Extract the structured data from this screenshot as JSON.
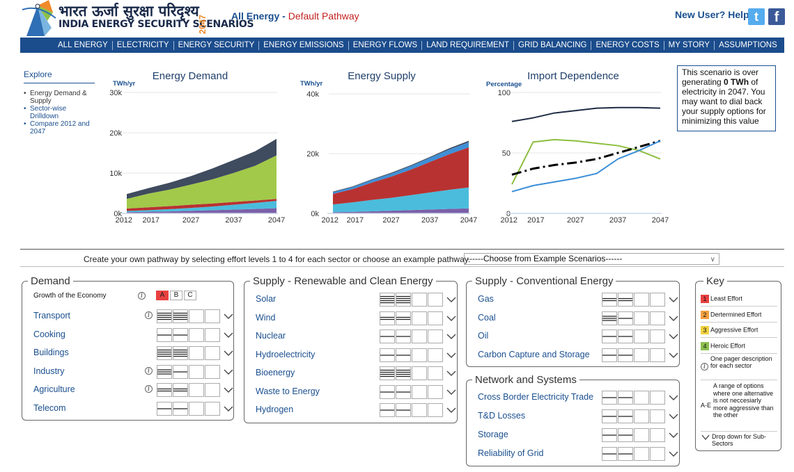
{
  "header": {
    "hindi_title": "भारत ऊर्जा सुरक्षा परिदृश्य",
    "english_title": "INDIA ENERGY SECURITY SCENARIOS",
    "year_vertical": "2047",
    "section": "All Energy",
    "separator": " - ",
    "pathway": "Default Pathway",
    "help": "New User? Help",
    "twitter_glyph": "t",
    "facebook_glyph": "f"
  },
  "nav": [
    "ALL ENERGY",
    "ELECTRICITY",
    "ENERGY SECURITY",
    "ENERGY EMISSIONS",
    "ENERGY FLOWS",
    "LAND REQUIREMENT",
    "GRID BALANCING",
    "ENERGY COSTS",
    "MY STORY",
    "ASSUMPTIONS"
  ],
  "explore": {
    "title": "Explore",
    "items": [
      "Energy Demand & Supply",
      "Sector-wise Drilldown",
      "Compare 2012 and 2047"
    ]
  },
  "note": {
    "pre": "This scenario is over generating ",
    "bold": "0 TWh",
    "post": " of electricity in 2047. You may want to dial back your supply options for minimizing this value"
  },
  "chart_data": [
    {
      "type": "area",
      "title": "Energy Demand",
      "ylabel": "TWh/yr",
      "y_ticks": [
        "0k",
        "10k",
        "20k",
        "30k"
      ],
      "ylim": [
        0,
        30000
      ],
      "x": [
        2012,
        2017,
        2022,
        2027,
        2032,
        2037,
        2042,
        2047
      ],
      "x_ticks": [
        "2012",
        "2017",
        "2027",
        "2037",
        "2047"
      ],
      "series": [
        {
          "color": "#7b60a8",
          "values": [
            300,
            400,
            500,
            650,
            800,
            950,
            1100,
            1300
          ]
        },
        {
          "color": "#4bbcdc",
          "values": [
            300,
            400,
            550,
            700,
            900,
            1200,
            1500,
            1800
          ]
        },
        {
          "color": "#b83232",
          "values": [
            600,
            700,
            750,
            800,
            750,
            700,
            600,
            500
          ]
        },
        {
          "color": "#a2c949",
          "values": [
            2400,
            3400,
            4100,
            5000,
            6000,
            7200,
            8600,
            10800
          ]
        },
        {
          "color": "#3f4b5e",
          "values": [
            1200,
            1350,
            1700,
            2100,
            2700,
            3200,
            3600,
            4100
          ]
        }
      ]
    },
    {
      "type": "area",
      "title": "Energy Supply",
      "ylabel": "TWh/yr",
      "y_ticks": [
        "0k",
        "20k",
        "40k"
      ],
      "ylim": [
        0,
        40000
      ],
      "x": [
        2012,
        2017,
        2022,
        2027,
        2032,
        2037,
        2042,
        2047
      ],
      "x_ticks": [
        "2012",
        "2017",
        "2027",
        "2037",
        "2047"
      ],
      "series": [
        {
          "color": "#7b60a8",
          "values": [
            400,
            500,
            700,
            900,
            1100,
            1300,
            1500,
            1700
          ]
        },
        {
          "color": "#4bbcdc",
          "values": [
            2600,
            3200,
            3800,
            4300,
            5000,
            5700,
            6400,
            7000
          ]
        },
        {
          "color": "#b83232",
          "values": [
            3500,
            4400,
            5800,
            7100,
            8500,
            10200,
            11900,
            13400
          ]
        },
        {
          "color": "#3f8fd6",
          "values": [
            600,
            700,
            900,
            1000,
            1200,
            1400,
            1600,
            1700
          ]
        },
        {
          "color": "#3f4b5e",
          "values": [
            200,
            200,
            200,
            300,
            300,
            300,
            400,
            500
          ]
        }
      ]
    },
    {
      "type": "line",
      "title": "Import Dependence",
      "ylabel": "Percentage",
      "y_ticks": [
        "0",
        "50",
        "100"
      ],
      "ylim": [
        0,
        100
      ],
      "x": [
        2012,
        2017,
        2022,
        2027,
        2032,
        2037,
        2042,
        2047
      ],
      "x_ticks": [
        "2012",
        "2017",
        "2027",
        "2037",
        "2047"
      ],
      "series": [
        {
          "color": "#1e2c44",
          "style": "solid",
          "values": [
            76,
            79,
            83,
            85,
            87,
            87.5,
            87.5,
            87
          ]
        },
        {
          "color": "#8cbf3f",
          "style": "solid",
          "values": [
            24,
            59,
            61,
            60,
            58,
            56,
            52,
            45
          ]
        },
        {
          "color": "#000000",
          "style": "dashdot",
          "values": [
            32,
            37,
            40,
            42,
            45,
            50,
            55,
            60
          ]
        },
        {
          "color": "#3a8ed8",
          "style": "solid",
          "values": [
            18,
            23,
            26,
            29,
            33,
            45,
            52,
            60
          ]
        }
      ]
    }
  ],
  "create": {
    "text": "Create your own pathway by selecting effort levels 1 to 4 for each sector or choose an example pathway.",
    "select": "------Choose from Example Scenarios------"
  },
  "demand": {
    "title": "Demand",
    "growth_label": "Growth of the Economy",
    "growth_options": [
      "A",
      "B",
      "C"
    ],
    "growth_selected": "A",
    "rows": [
      {
        "label": "Transport",
        "info": true,
        "level": 4
      },
      {
        "label": "Cooking",
        "info": false,
        "level": 1
      },
      {
        "label": "Buildings",
        "info": false,
        "level": 4
      },
      {
        "label": "Industry",
        "info": true,
        "level": 3
      },
      {
        "label": "Agriculture",
        "info": true,
        "level": 2
      },
      {
        "label": "Telecom",
        "info": false,
        "level": 1
      }
    ]
  },
  "supply_renewable": {
    "title": "Supply - Renewable and Clean Energy",
    "rows": [
      {
        "label": "Solar",
        "level": 4
      },
      {
        "label": "Wind",
        "level": 2
      },
      {
        "label": "Nuclear",
        "level": 1
      },
      {
        "label": "Hydroelectricity",
        "level": 1
      },
      {
        "label": "Bioenergy",
        "level": 4
      },
      {
        "label": "Waste to Energy",
        "level": 1
      },
      {
        "label": "Hydrogen",
        "level": 1
      }
    ]
  },
  "supply_conventional": {
    "title": "Supply - Conventional Energy",
    "rows": [
      {
        "label": "Gas",
        "level": 2
      },
      {
        "label": "Coal",
        "level": 3
      },
      {
        "label": "Oil",
        "level": 1
      },
      {
        "label": "Carbon Capture and Storage",
        "level": 1
      }
    ]
  },
  "network": {
    "title": "Network and Systems",
    "rows": [
      {
        "label": "Cross Border Electricity Trade",
        "level": 1
      },
      {
        "label": "T&D Losses",
        "level": 1
      },
      {
        "label": "Storage",
        "level": 1
      },
      {
        "label": "Reliability of Grid",
        "level": 1
      }
    ]
  },
  "key": {
    "title": "Key",
    "items": [
      {
        "num": "1",
        "label": "Least Effort",
        "color": "#e84040"
      },
      {
        "num": "2",
        "label": "Dertermined Effort",
        "color": "#f4a040"
      },
      {
        "num": "3",
        "label": "Aggressive Effort",
        "color": "#f0d040"
      },
      {
        "num": "4",
        "label": "Heroic Effort",
        "color": "#8cbf50"
      }
    ],
    "info_text": "One pager description for each sector",
    "ae_label": "A-E",
    "ae_text": "A range of options where one alternative is not neccesiarly more aggressive than the other",
    "drop_text": "Drop down for Sub-Sectors"
  }
}
